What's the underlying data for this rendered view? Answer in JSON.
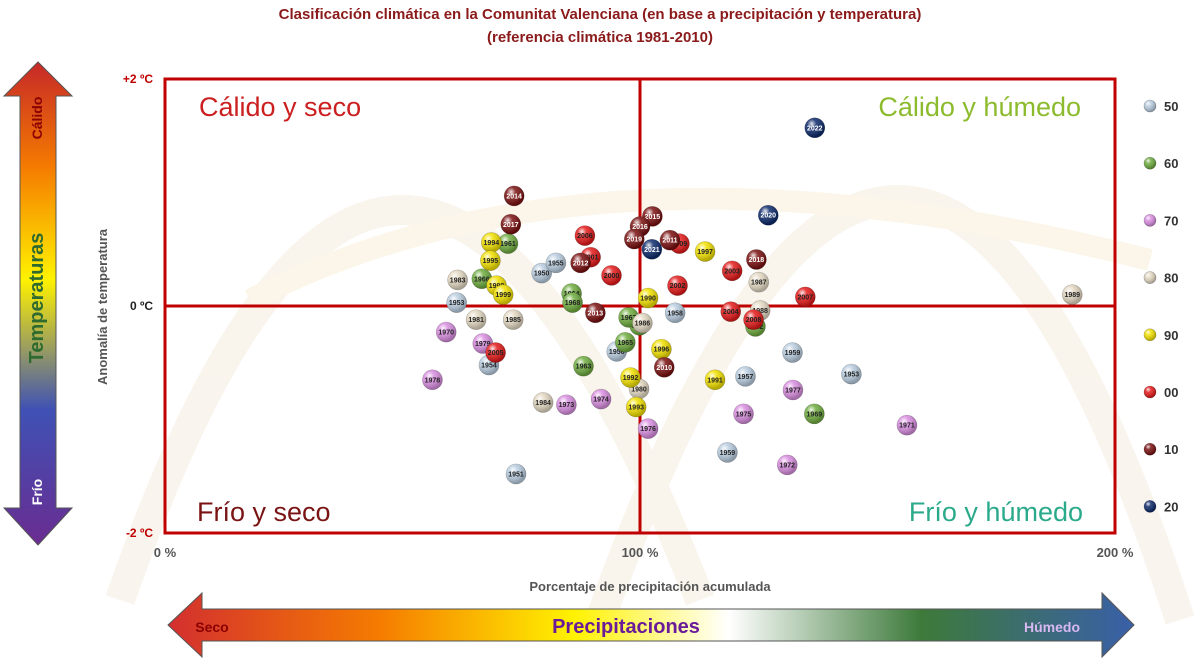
{
  "chart_data": {
    "type": "scatter",
    "title": "Clasificación climática en la Comunitat Valenciana (en base a precipitación y temperatura)",
    "subtitle": "(referencia climática 1981-2010)",
    "xlabel": "Porcentaje de precipitación acumulada",
    "ylabel": "Anomalía de temperatura",
    "xlim": [
      0,
      200
    ],
    "ylim": [
      -2,
      2
    ],
    "x_ticks": [
      {
        "v": 0,
        "label": "0 %"
      },
      {
        "v": 100,
        "label": "100 %"
      },
      {
        "v": 200,
        "label": "200 %"
      }
    ],
    "y_ticks": [
      {
        "v": 2,
        "label": "+2 ºC"
      },
      {
        "v": 0,
        "label": "0 ºC"
      },
      {
        "v": -2,
        "label": "-2 ºC"
      }
    ],
    "quadrants": [
      {
        "label": "Cálido y seco",
        "pos": "top-left",
        "color": "#cc1f1f"
      },
      {
        "label": "Cálido y húmedo",
        "pos": "top-right",
        "color": "#8dbb2e"
      },
      {
        "label": "Frío y seco",
        "pos": "bottom-left",
        "color": "#7a1414"
      },
      {
        "label": "Frío y húmedo",
        "pos": "bottom-right",
        "color": "#2aaa8a"
      }
    ],
    "legend": [
      {
        "label": "50",
        "color": "#b9cde0"
      },
      {
        "label": "60",
        "color": "#6fac3f"
      },
      {
        "label": "70",
        "color": "#d98ee0"
      },
      {
        "label": "80",
        "color": "#e3d8c2"
      },
      {
        "label": "90",
        "color": "#f1e000"
      },
      {
        "label": "00",
        "color": "#e41a1a"
      },
      {
        "label": "10",
        "color": "#7a1010"
      },
      {
        "label": "20",
        "color": "#0d2a6b"
      }
    ],
    "points": [
      {
        "year": "1950",
        "x": 79.3,
        "y": 0.29
      },
      {
        "year": "1951",
        "x": 73.9,
        "y": -1.48
      },
      {
        "year": "1953",
        "x": 61.4,
        "y": 0.03
      },
      {
        "year": "1954",
        "x": 68.2,
        "y": -0.52
      },
      {
        "year": "1955",
        "x": 82.3,
        "y": 0.38
      },
      {
        "year": "1956",
        "x": 95.1,
        "y": -0.4
      },
      {
        "year": "1957",
        "x": 122.2,
        "y": -0.62
      },
      {
        "year": "1958",
        "x": 107.4,
        "y": -0.06
      },
      {
        "year": "1959",
        "x": 118.4,
        "y": -1.29
      },
      {
        "year": "1953",
        "x": 144.5,
        "y": -0.6
      },
      {
        "year": "1959",
        "x": 132.1,
        "y": -0.41
      },
      {
        "year": "1960",
        "x": 99.9,
        "y": -0.17
      },
      {
        "year": "1961",
        "x": 72.2,
        "y": 0.55
      },
      {
        "year": "1962",
        "x": 124.3,
        "y": -0.18
      },
      {
        "year": "1963",
        "x": 88.1,
        "y": -0.53
      },
      {
        "year": "1964",
        "x": 85.6,
        "y": 0.11
      },
      {
        "year": "1965",
        "x": 96.9,
        "y": -0.32
      },
      {
        "year": "1966",
        "x": 66.7,
        "y": 0.24
      },
      {
        "year": "1967",
        "x": 97.6,
        "y": -0.1
      },
      {
        "year": "1968",
        "x": 85.8,
        "y": 0.03
      },
      {
        "year": "1969",
        "x": 136.7,
        "y": -0.95
      },
      {
        "year": "1970",
        "x": 59.2,
        "y": -0.23
      },
      {
        "year": "1971",
        "x": 156.2,
        "y": -1.05
      },
      {
        "year": "1972",
        "x": 131.0,
        "y": -1.4
      },
      {
        "year": "1973",
        "x": 84.5,
        "y": -0.87
      },
      {
        "year": "1974",
        "x": 91.8,
        "y": -0.82
      },
      {
        "year": "1975",
        "x": 121.8,
        "y": -0.95
      },
      {
        "year": "1976",
        "x": 101.7,
        "y": -1.08
      },
      {
        "year": "1977",
        "x": 132.2,
        "y": -0.74
      },
      {
        "year": "1978",
        "x": 56.3,
        "y": -0.65
      },
      {
        "year": "1979",
        "x": 66.9,
        "y": -0.33
      },
      {
        "year": "1980",
        "x": 99.8,
        "y": -0.73
      },
      {
        "year": "1981",
        "x": 65.5,
        "y": -0.12
      },
      {
        "year": "1983",
        "x": 61.6,
        "y": 0.23
      },
      {
        "year": "1984",
        "x": 79.6,
        "y": -0.85
      },
      {
        "year": "1985",
        "x": 73.3,
        "y": -0.12
      },
      {
        "year": "1986",
        "x": 100.5,
        "y": -0.15
      },
      {
        "year": "1987",
        "x": 125.0,
        "y": 0.21
      },
      {
        "year": "1988",
        "x": 125.3,
        "y": -0.04
      },
      {
        "year": "1989",
        "x": 191.0,
        "y": 0.1
      },
      {
        "year": "1990",
        "x": 101.7,
        "y": 0.07
      },
      {
        "year": "1991",
        "x": 115.8,
        "y": -0.65
      },
      {
        "year": "1992",
        "x": 98.0,
        "y": -0.63
      },
      {
        "year": "1993",
        "x": 99.2,
        "y": -0.89
      },
      {
        "year": "1994",
        "x": 68.7,
        "y": 0.56
      },
      {
        "year": "1995",
        "x": 68.5,
        "y": 0.4
      },
      {
        "year": "1996",
        "x": 104.5,
        "y": -0.38
      },
      {
        "year": "1997",
        "x": 113.7,
        "y": 0.48
      },
      {
        "year": "1998",
        "x": 69.8,
        "y": 0.18
      },
      {
        "year": "1999",
        "x": 71.2,
        "y": 0.1
      },
      {
        "year": "2000",
        "x": 94.0,
        "y": 0.27
      },
      {
        "year": "2001",
        "x": 89.6,
        "y": 0.43
      },
      {
        "year": "2002",
        "x": 107.9,
        "y": 0.18
      },
      {
        "year": "2003",
        "x": 119.4,
        "y": 0.31
      },
      {
        "year": "2004",
        "x": 119.1,
        "y": -0.05
      },
      {
        "year": "2005",
        "x": 69.6,
        "y": -0.41
      },
      {
        "year": "2006",
        "x": 88.4,
        "y": 0.62
      },
      {
        "year": "2007",
        "x": 134.8,
        "y": 0.08
      },
      {
        "year": "2008",
        "x": 123.9,
        "y": -0.12
      },
      {
        "year": "2009",
        "x": 108.3,
        "y": 0.55
      },
      {
        "year": "2010",
        "x": 105.1,
        "y": -0.54
      },
      {
        "year": "2011",
        "x": 106.3,
        "y": 0.58
      },
      {
        "year": "2012",
        "x": 87.5,
        "y": 0.38
      },
      {
        "year": "2013",
        "x": 90.6,
        "y": -0.06
      },
      {
        "year": "2014",
        "x": 73.5,
        "y": 0.97
      },
      {
        "year": "2015",
        "x": 102.6,
        "y": 0.79
      },
      {
        "year": "2016",
        "x": 100.0,
        "y": 0.7
      },
      {
        "year": "2017",
        "x": 72.8,
        "y": 0.72
      },
      {
        "year": "2018",
        "x": 124.5,
        "y": 0.41
      },
      {
        "year": "2019",
        "x": 98.8,
        "y": 0.59
      },
      {
        "year": "2020",
        "x": 127.0,
        "y": 0.8
      },
      {
        "year": "2021",
        "x": 102.5,
        "y": 0.5
      },
      {
        "year": "2022",
        "x": 136.8,
        "y": 1.57
      }
    ]
  },
  "temp_arrow": {
    "top_label": "Cálido",
    "bottom_label": "Frío",
    "label": "Temperaturas"
  },
  "precip_arrow": {
    "left_label": "Seco",
    "right_label": "Húmedo",
    "label": "Precipitaciones"
  }
}
